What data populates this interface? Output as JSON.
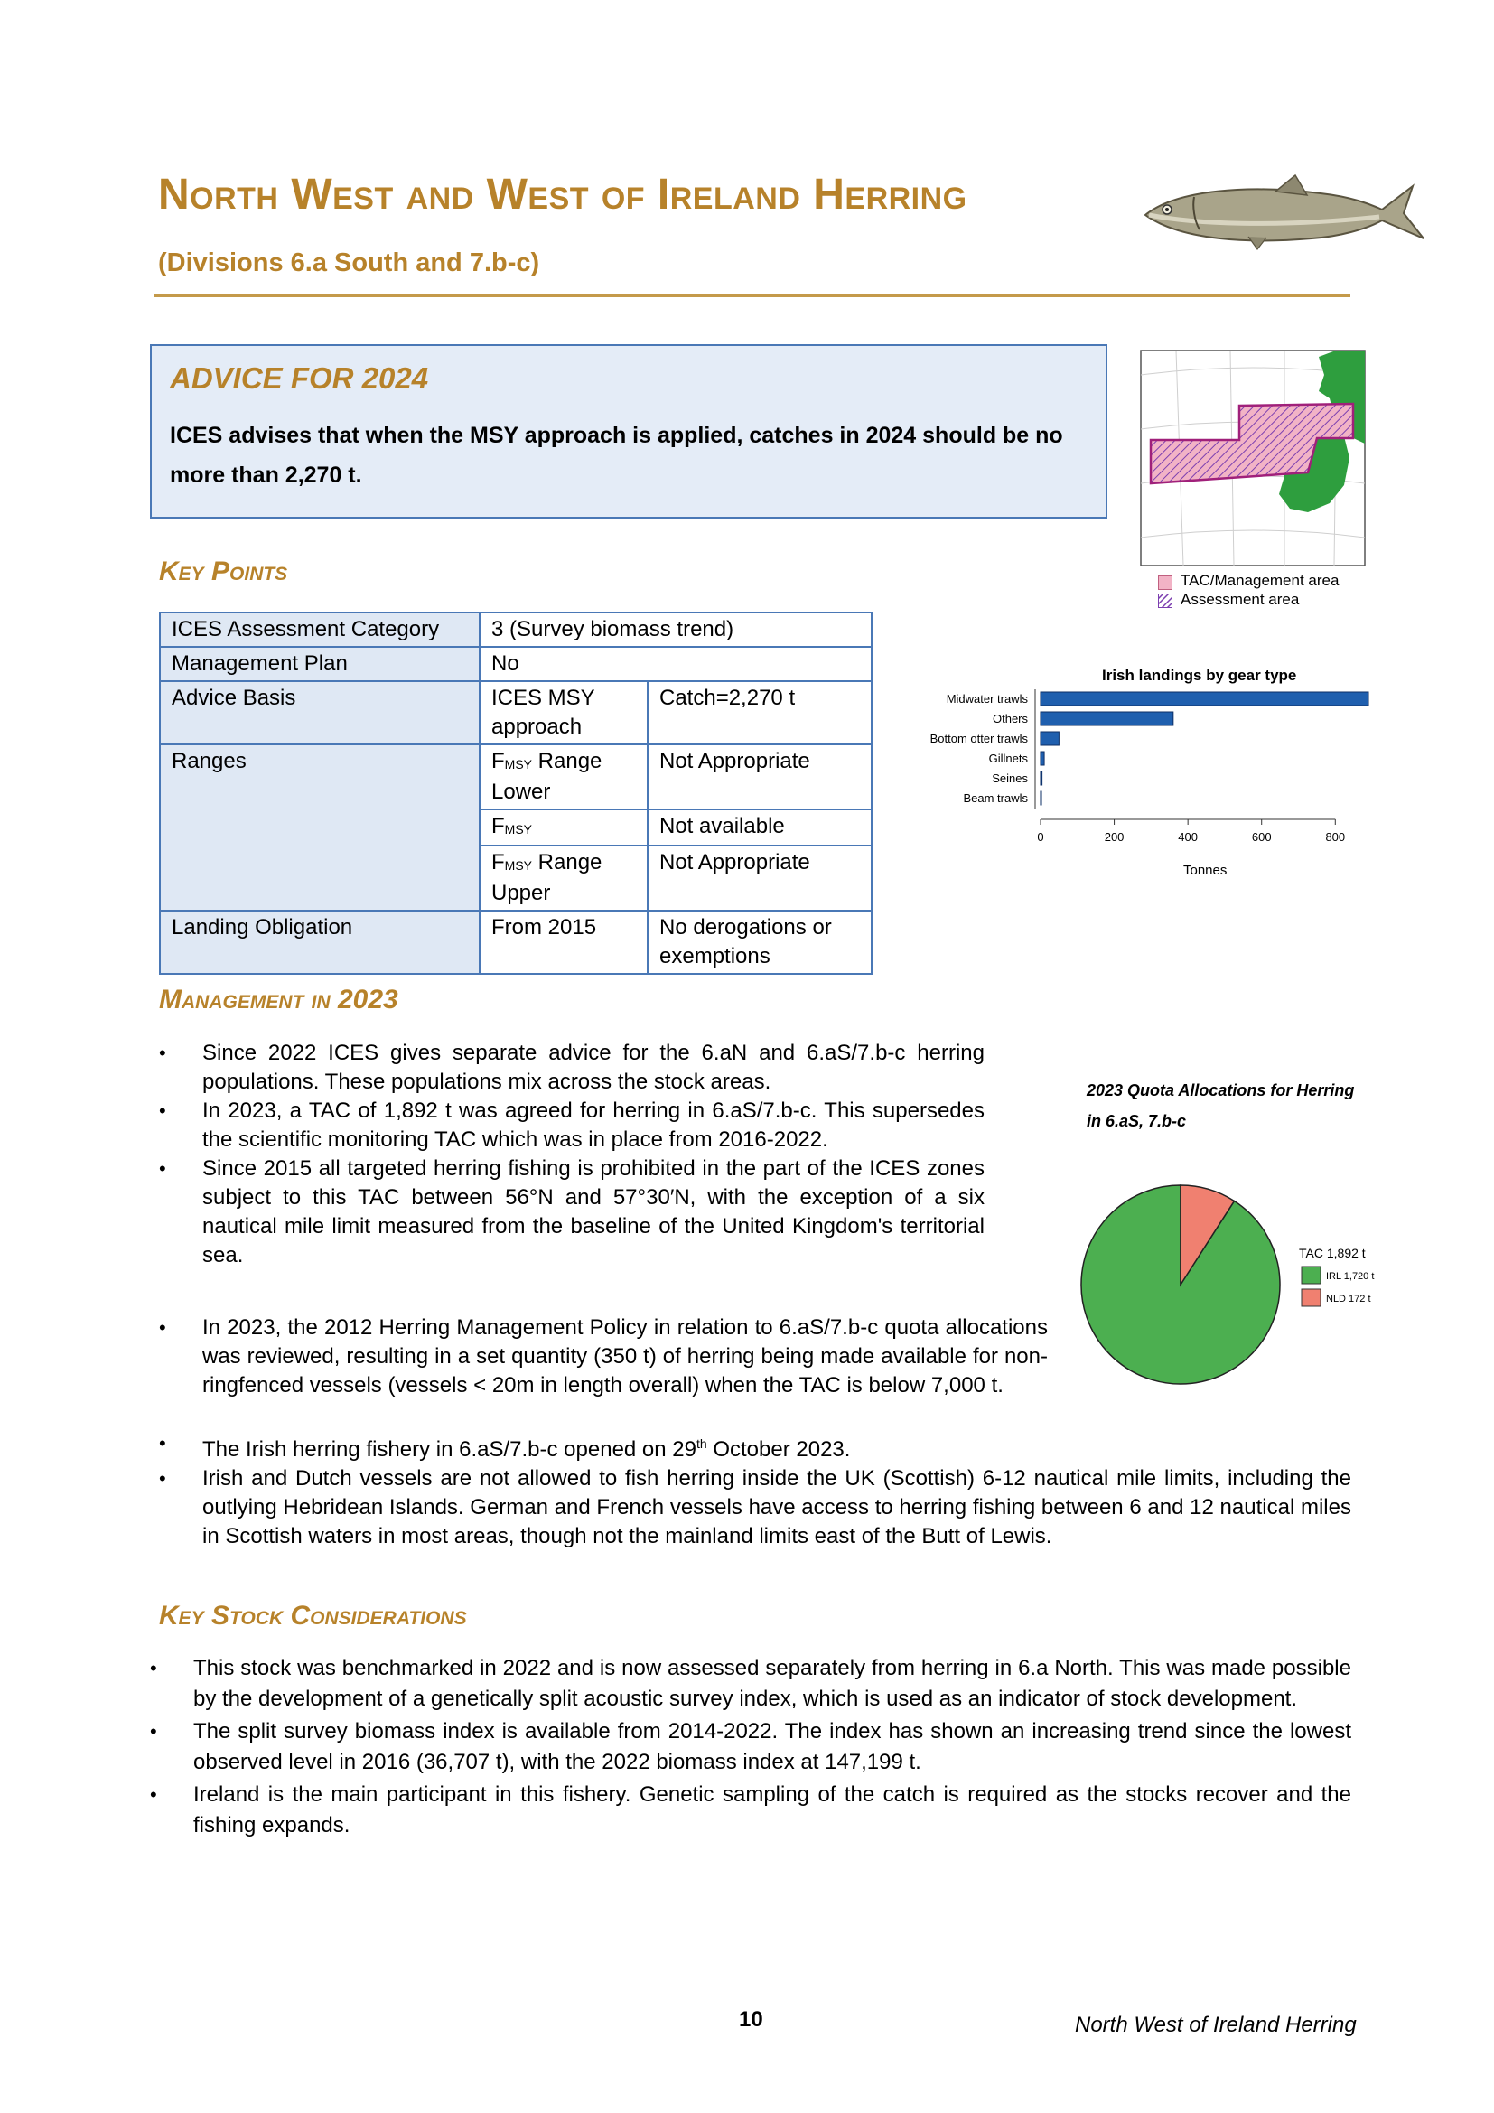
{
  "header": {
    "title": "North West and West of Ireland Herring",
    "subtitle": "(Divisions 6.a South and 7.b-c)"
  },
  "advice": {
    "heading": "ADVICE FOR 2024",
    "text": "ICES advises that when the MSY approach is applied, catches in 2024 should be no more than 2,270 t."
  },
  "map": {
    "legend": [
      "TAC/Management area",
      "Assessment area"
    ],
    "colors": {
      "tac": "#f2b3c6",
      "assessment": "#7c3fb0",
      "land": "#2e9e3e"
    }
  },
  "key_points": {
    "heading": "Key Points",
    "rows": {
      "category_label": "ICES Assessment Category",
      "category_value": "3 (Survey biomass trend)",
      "plan_label": "Management Plan",
      "plan_value": "No",
      "basis_label": "Advice Basis",
      "basis_value1": "ICES MSY approach",
      "basis_value2": "Catch=2,270 t",
      "ranges_label": "Ranges",
      "range_lower_pre": "F",
      "range_lower_sub": "MSY",
      "range_lower_post": " Range Lower",
      "range_lower_value": "Not Appropriate",
      "fmsy_pre": "F",
      "fmsy_sub": "MSY",
      "fmsy_value": "Not available",
      "range_upper_pre": "F",
      "range_upper_sub": "MSY",
      "range_upper_post": " Range Upper",
      "range_upper_value": "Not Appropriate",
      "lo_label": "Landing Obligation",
      "lo_value1": "From 2015",
      "lo_value2": "No derogations or exemptions"
    }
  },
  "chart_data": [
    {
      "type": "bar",
      "orientation": "horizontal",
      "title": "Irish landings by gear type",
      "xlabel": "Tonnes",
      "ylabel": "",
      "categories": [
        "Midwater trawls",
        "Others",
        "Bottom otter trawls",
        "Gillnets",
        "Seines",
        "Beam trawls"
      ],
      "values": [
        890,
        360,
        50,
        10,
        4,
        2
      ],
      "xlim": [
        0,
        890
      ],
      "xticks": [
        0,
        200,
        400,
        600,
        800
      ],
      "bar_color": "#1f5fae",
      "grid": false
    },
    {
      "type": "pie",
      "title": "2023 Quota Allocations for Herring in 6.aS, 7.b-c",
      "legend_title": "TAC 1,892 t",
      "legend_position": "right",
      "slices": [
        {
          "label": "IRL 1,720 t",
          "value": 1720,
          "color": "#4caf50"
        },
        {
          "label": "NLD 172 t",
          "value": 172,
          "color": "#f08070"
        }
      ]
    }
  ],
  "management": {
    "heading": "Management in 2023",
    "bullets": [
      "Since 2022 ICES gives separate advice for the 6.aN and 6.aS/7.b-c herring populations. These populations mix across the stock areas.",
      "In 2023, a TAC of 1,892 t was agreed for herring in 6.aS/7.b-c. This supersedes the scientific monitoring TAC which was in place from 2016-2022.",
      "Since 2015 all targeted herring fishing is prohibited in the part of the ICES zones subject to this TAC between 56°N and 57°30′N, with the exception of a six nautical mile limit measured from the baseline of the United Kingdom's territorial sea.",
      "In 2023, the 2012 Herring Management Policy in relation to 6.aS/7.b-c quota allocations was reviewed, resulting in a set quantity (350 t) of herring being made available for non-ringfenced vessels (vessels < 20m in length overall) when the TAC is below 7,000 t."
    ],
    "bullet5_pre": "The Irish herring fishery in 6.aS/7.b-c opened on 29",
    "bullet5_sup": "th",
    "bullet5_post": " October 2023.",
    "bullet6": "Irish and Dutch vessels are not allowed to fish herring inside the UK (Scottish) 6-12 nautical mile limits, including the outlying Hebridean Islands. German and French vessels have access to herring fishing between 6 and 12 nautical miles in Scottish waters in most areas, though not the mainland limits east of the Butt of Lewis."
  },
  "considerations": {
    "heading": "Key Stock Considerations",
    "bullets": [
      "This stock was benchmarked in 2022 and is now assessed separately from herring in 6.a North. This was made possible by the development of a genetically split acoustic survey index, which is used as an indicator of stock development.",
      "The split survey biomass index is available from 2014-2022. The index has shown an increasing trend since the lowest observed level in 2016 (36,707 t), with the 2022 biomass index at 147,199 t.",
      "Ireland is the main participant in this fishery. Genetic sampling of the catch is required as the stocks recover and the fishing expands."
    ]
  },
  "footer": {
    "page_number": "10",
    "running_title": "North West of Ireland Herring"
  }
}
